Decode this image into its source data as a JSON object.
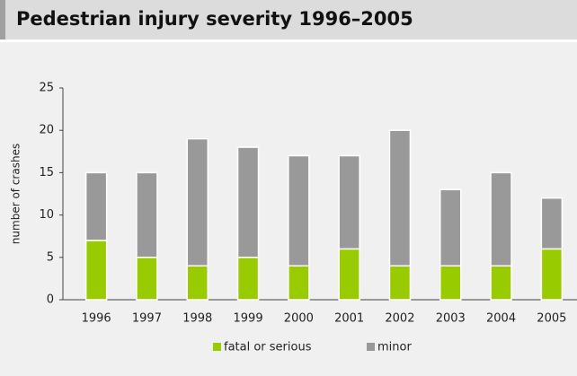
{
  "chart_data": {
    "type": "stacked_bar",
    "title": "Pedestrian injury severity 1996–2005",
    "y_label": "number of crashes",
    "categories": [
      "1996",
      "1997",
      "1998",
      "1999",
      "2000",
      "2001",
      "2002",
      "2003",
      "2004",
      "2005"
    ],
    "series": [
      {
        "name": "fatal or serious",
        "color": "#99cc00",
        "values": [
          7,
          5,
          4,
          5,
          4,
          6,
          4,
          4,
          4,
          6
        ]
      },
      {
        "name": "minor",
        "color": "#999999",
        "values": [
          8,
          10,
          15,
          13,
          13,
          11,
          16,
          9,
          11,
          6
        ]
      }
    ],
    "ylim": [
      0,
      25
    ],
    "yticks": [
      0,
      5,
      10,
      15,
      20,
      25
    ],
    "grid": false,
    "legend": "bottom"
  }
}
